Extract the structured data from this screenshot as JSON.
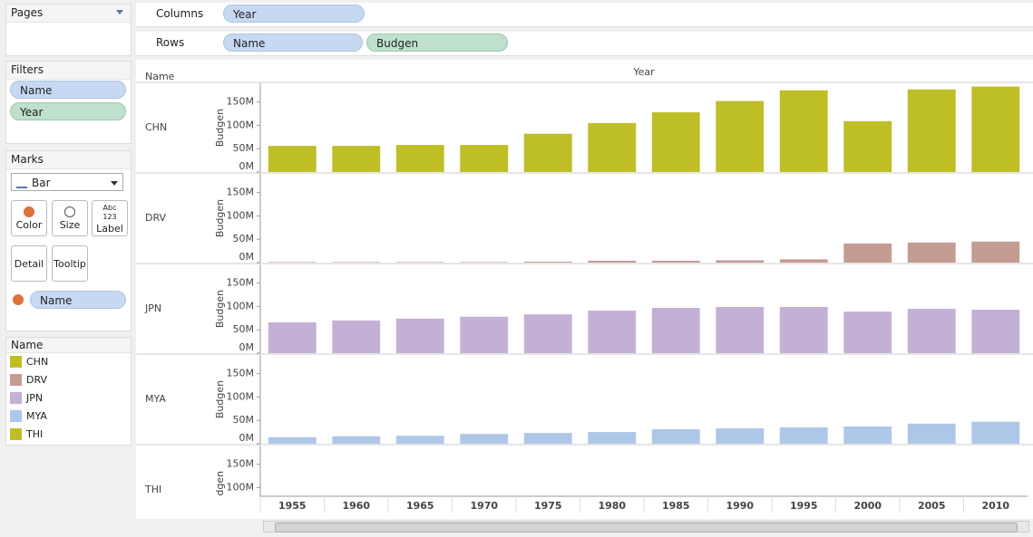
{
  "ui": {
    "pages_title": "Pages",
    "columns_label": "Columns",
    "columns_pill": "Year",
    "rows_label": "Rows",
    "rows_pills": [
      "Name",
      "Budgen"
    ],
    "filters_title": "Filters",
    "filters": [
      "Name",
      "Year"
    ],
    "marks_title": "Marks",
    "mark_type": "Bar",
    "mark_buttons": [
      "Color",
      "Size",
      "Label",
      "Detail",
      "Tooltip"
    ],
    "label_icon": [
      "Abc",
      "123"
    ],
    "marks_field": "Name",
    "legend_title": "Name"
  },
  "chart_data": {
    "type": "bar",
    "row_header": "Name",
    "column_header": "Year",
    "y_label": "Budgen",
    "categories": [
      "1955",
      "1960",
      "1965",
      "1970",
      "1975",
      "1980",
      "1985",
      "1990",
      "1995",
      "2000",
      "2005",
      "2010"
    ],
    "series": [
      {
        "name": "CHN",
        "color": "#bebe26",
        "values": [
          56,
          56,
          58,
          58,
          82,
          105,
          128,
          152,
          175,
          109,
          177,
          183
        ]
      },
      {
        "name": "DRV",
        "color": "#c49c94",
        "values": [
          1,
          1,
          1,
          1,
          2,
          4,
          4,
          5,
          7,
          41,
          43,
          45
        ]
      },
      {
        "name": "JPN",
        "color": "#c5b0d5",
        "values": [
          66,
          70,
          74,
          78,
          83,
          91,
          97,
          99,
          99,
          89,
          95,
          93
        ]
      },
      {
        "name": "MYA",
        "color": "#aec7e8",
        "values": [
          14,
          16,
          17,
          21,
          23,
          25,
          31,
          33,
          35,
          37,
          43,
          47
        ]
      },
      {
        "name": "THI",
        "color": "#bebe26",
        "values": [
          null,
          null,
          null,
          null,
          null,
          null,
          null,
          null,
          null,
          null,
          null,
          null
        ]
      }
    ],
    "ylim": [
      0,
      190
    ],
    "yticks": [
      {
        "value": 0,
        "label": "0M"
      },
      {
        "value": 50,
        "label": "50M"
      },
      {
        "value": 100,
        "label": "100M"
      },
      {
        "value": 150,
        "label": "150M"
      }
    ],
    "grid": false
  }
}
